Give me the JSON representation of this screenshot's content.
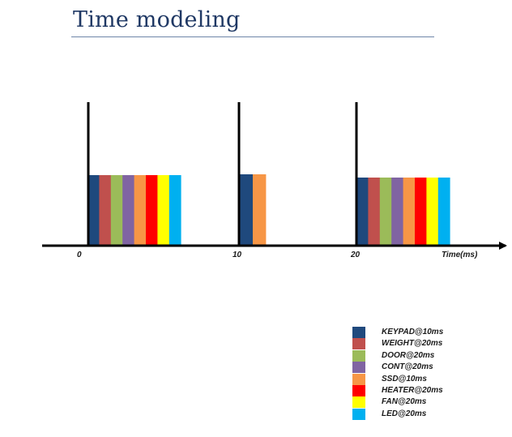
{
  "title": "Time modeling",
  "axis": {
    "ticks": [
      "0",
      "10",
      "20"
    ],
    "time_label": "Time(ms)"
  },
  "tasks": [
    {
      "label": "KEYPAD@10ms",
      "color": "#1f497d"
    },
    {
      "label": "WEIGHT@20ms",
      "color": "#c0504d"
    },
    {
      "label": "DOOR@20ms",
      "color": "#9bbb59"
    },
    {
      "label": "CONT@20ms",
      "color": "#8064a2"
    },
    {
      "label": "SSD@10ms",
      "color": "#f79646"
    },
    {
      "label": "HEATER@20ms",
      "color": "#ff0000"
    },
    {
      "label": "FAN@20ms",
      "color": "#ffff00"
    },
    {
      "label": "LED@20ms",
      "color": "#00b0f0"
    }
  ],
  "schedule": [
    {
      "tick": "0",
      "tasks": [
        "KEYPAD@10ms",
        "WEIGHT@20ms",
        "DOOR@20ms",
        "CONT@20ms",
        "SSD@10ms",
        "HEATER@20ms",
        "FAN@20ms",
        "LED@20ms"
      ]
    },
    {
      "tick": "10",
      "tasks": [
        "KEYPAD@10ms",
        "SSD@10ms"
      ]
    },
    {
      "tick": "20",
      "tasks": [
        "KEYPAD@10ms",
        "WEIGHT@20ms",
        "DOOR@20ms",
        "CONT@20ms",
        "SSD@10ms",
        "HEATER@20ms",
        "FAN@20ms",
        "LED@20ms"
      ]
    }
  ]
}
